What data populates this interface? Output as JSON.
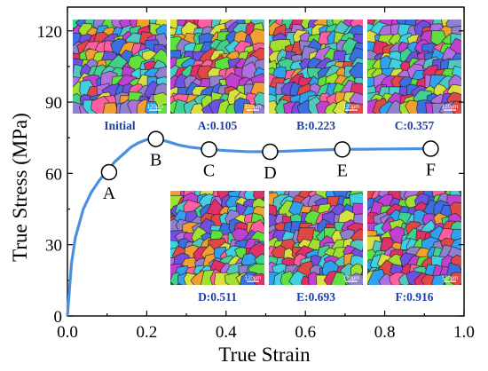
{
  "chart_data": {
    "type": "line",
    "xlabel": "True Strain",
    "ylabel": "True Stress (MPa)",
    "xlim": [
      0.0,
      1.0
    ],
    "ylim": [
      0,
      130
    ],
    "x_ticks": [
      "0.0",
      "0.2",
      "0.4",
      "0.6",
      "0.8",
      "1.0"
    ],
    "y_ticks": [
      "0",
      "30",
      "60",
      "90",
      "120"
    ],
    "grid": false,
    "line_color": "#4a90e2",
    "series": [
      {
        "x": [
          0.0,
          0.01,
          0.02,
          0.04,
          0.06,
          0.08,
          0.1,
          0.12,
          0.14,
          0.16,
          0.18,
          0.2,
          0.223,
          0.25,
          0.28,
          0.31,
          0.357,
          0.4,
          0.45,
          0.511,
          0.56,
          0.62,
          0.693,
          0.75,
          0.82,
          0.916
        ],
        "y": [
          0,
          22,
          33,
          45,
          52,
          57,
          61,
          65,
          68,
          71,
          73,
          74.2,
          74.5,
          73.5,
          72,
          71,
          70.1,
          69.6,
          69.2,
          69.1,
          69.4,
          69.8,
          70.1,
          70.2,
          70.3,
          70.4
        ]
      }
    ],
    "marked_points": [
      {
        "label": "A",
        "x": 0.105,
        "y": 60.5
      },
      {
        "label": "B",
        "x": 0.223,
        "y": 74.5
      },
      {
        "label": "C",
        "x": 0.357,
        "y": 70.1
      },
      {
        "label": "D",
        "x": 0.511,
        "y": 69.1
      },
      {
        "label": "E",
        "x": 0.693,
        "y": 70.1
      },
      {
        "label": "F",
        "x": 0.916,
        "y": 70.4
      }
    ]
  },
  "insets": [
    {
      "caption": "Initial",
      "scale": "120μm"
    },
    {
      "caption": "A:0.105",
      "scale": "120μm"
    },
    {
      "caption": "B:0.223",
      "scale": "120μm"
    },
    {
      "caption": "C:0.357",
      "scale": "120μm"
    },
    {
      "caption": "D:0.511",
      "scale": "120μm"
    },
    {
      "caption": "E:0.693",
      "scale": "120μm"
    },
    {
      "caption": "F:0.916",
      "scale": "120μm"
    }
  ],
  "colors": {
    "caption": "#1f3fa8",
    "grain_palette": [
      "#e0306a",
      "#ff5fa0",
      "#c040d0",
      "#7050e0",
      "#3b6fe0",
      "#30a0f0",
      "#40d0e0",
      "#40d090",
      "#60e040",
      "#a0e030",
      "#d8e040",
      "#f0a030",
      "#e04848",
      "#9080d0",
      "#50c8c0",
      "#b070e0"
    ]
  }
}
